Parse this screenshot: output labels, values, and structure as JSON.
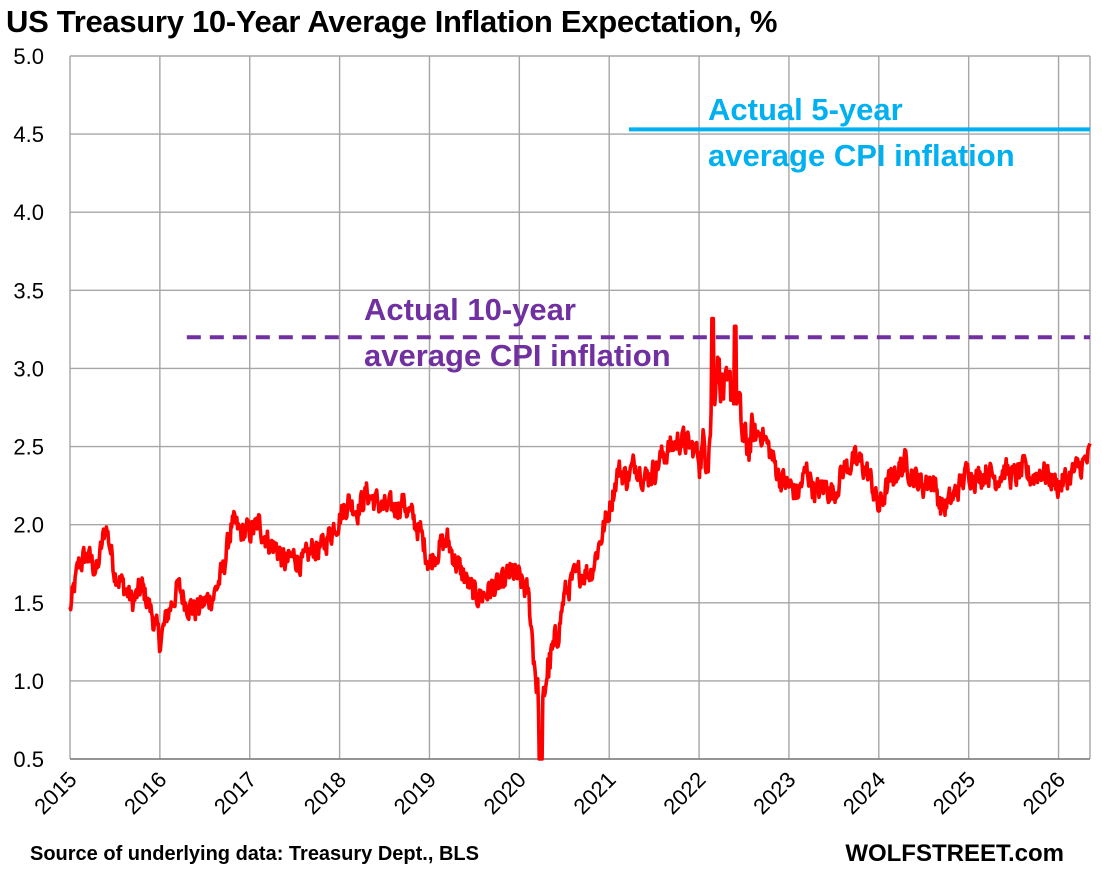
{
  "chart_data": {
    "type": "line",
    "title": "US Treasury 10-Year Average Inflation Expectation, %",
    "source": "Source of underlying data: Treasury Dept., BLS",
    "brand": "WOLFSTREET.com",
    "ylim": [
      0.5,
      5.0
    ],
    "yticks": [
      "5.0",
      "4.5",
      "4.0",
      "3.5",
      "3.0",
      "2.5",
      "2.0",
      "1.5",
      "1.0",
      "0.5"
    ],
    "xlim": [
      2015.0,
      2026.35
    ],
    "xticks": [
      "2015",
      "2016",
      "2017",
      "2018",
      "2019",
      "2020",
      "2021",
      "2022",
      "2023",
      "2024",
      "2025",
      "2026"
    ],
    "grid": true,
    "colors": {
      "series": "#ff0000",
      "five_year": "#00b0f0",
      "ten_year": "#7030a0",
      "grid": "#a6a6a6"
    },
    "series": [
      {
        "x": [
          2015.0,
          2015.1,
          2015.2,
          2015.3,
          2015.4,
          2015.5,
          2015.6,
          2015.7,
          2015.8,
          2015.9,
          2016.0,
          2016.1,
          2016.2,
          2016.3,
          2016.4,
          2016.5,
          2016.6,
          2016.7,
          2016.8,
          2016.9,
          2017.0,
          2017.1,
          2017.2,
          2017.3,
          2017.4,
          2017.5,
          2017.6,
          2017.7,
          2017.8,
          2017.9,
          2018.0,
          2018.1,
          2018.2,
          2018.3,
          2018.4,
          2018.5,
          2018.6,
          2018.7,
          2018.8,
          2018.9,
          2019.0,
          2019.1,
          2019.2,
          2019.3,
          2019.4,
          2019.5,
          2019.6,
          2019.7,
          2019.8,
          2019.9,
          2020.0,
          2020.1,
          2020.2,
          2020.25,
          2020.3,
          2020.4,
          2020.5,
          2020.6,
          2020.7,
          2020.8,
          2020.9,
          2021.0,
          2021.1,
          2021.2,
          2021.3,
          2021.4,
          2021.5,
          2021.6,
          2021.7,
          2021.8,
          2021.9,
          2022.0,
          2022.1,
          2022.2,
          2022.3,
          2022.4,
          2022.5,
          2022.6,
          2022.7,
          2022.8,
          2022.9,
          2023.0,
          2023.1,
          2023.2,
          2023.3,
          2023.4,
          2023.5,
          2023.6,
          2023.7,
          2023.8,
          2023.9,
          2024.0,
          2024.1,
          2024.2,
          2024.3,
          2024.4,
          2024.5,
          2024.6,
          2024.7,
          2024.8,
          2024.9,
          2025.0,
          2025.1,
          2025.2,
          2025.3,
          2025.4,
          2025.5,
          2025.6,
          2025.7,
          2025.8,
          2025.9,
          2026.0,
          2026.1,
          2026.2,
          2026.3,
          2026.35
        ],
        "values": [
          1.45,
          1.75,
          1.8,
          1.7,
          2.0,
          1.7,
          1.6,
          1.5,
          1.6,
          1.45,
          1.25,
          1.45,
          1.6,
          1.5,
          1.45,
          1.5,
          1.55,
          1.7,
          2.0,
          1.95,
          1.95,
          2.0,
          1.9,
          1.85,
          1.75,
          1.8,
          1.75,
          1.85,
          1.85,
          1.95,
          2.05,
          2.15,
          2.1,
          2.2,
          2.15,
          2.1,
          2.1,
          2.15,
          2.05,
          1.95,
          1.75,
          1.85,
          1.9,
          1.75,
          1.65,
          1.55,
          1.55,
          1.6,
          1.6,
          1.7,
          1.65,
          1.55,
          0.95,
          0.7,
          1.05,
          1.2,
          1.55,
          1.65,
          1.7,
          1.7,
          1.9,
          2.1,
          2.35,
          2.3,
          2.4,
          2.3,
          2.35,
          2.45,
          2.5,
          2.55,
          2.5,
          2.45,
          2.5,
          3.05,
          2.8,
          2.9,
          2.5,
          2.55,
          2.6,
          2.45,
          2.3,
          2.25,
          2.2,
          2.35,
          2.2,
          2.25,
          2.2,
          2.35,
          2.4,
          2.4,
          2.3,
          2.1,
          2.25,
          2.35,
          2.4,
          2.3,
          2.25,
          2.3,
          2.1,
          2.15,
          2.25,
          2.35,
          2.3,
          2.35,
          2.3,
          2.35,
          2.3,
          2.35,
          2.3,
          2.35,
          2.3,
          2.25,
          2.3,
          2.35,
          2.4,
          2.45
        ]
      }
    ],
    "reference_lines": [
      {
        "value": 4.53,
        "x_start": 2021.22,
        "x_end": 2026.35,
        "style": "solid",
        "color": "#00b0f0"
      },
      {
        "value": 3.2,
        "x_start": 2016.3,
        "x_end": 2026.35,
        "style": "dashed",
        "color": "#7030a0"
      }
    ],
    "annotations": [
      {
        "lines": [
          "Actual 5-year",
          "average CPI inflation"
        ],
        "color": "#00b0f0"
      },
      {
        "lines": [
          "Actual 10-year",
          "average CPI inflation"
        ],
        "color": "#7030a0"
      }
    ]
  }
}
